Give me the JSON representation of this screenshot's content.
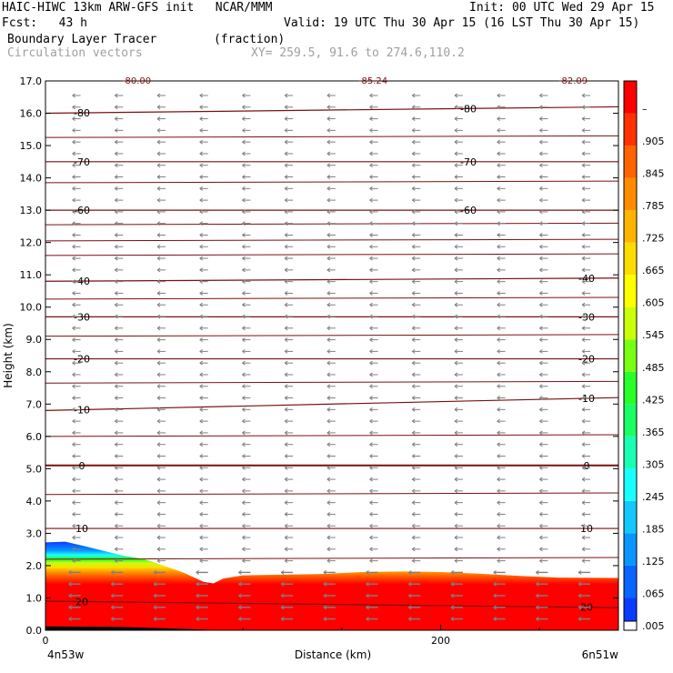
{
  "header": {
    "model_line": "HAIC-HIWC 13km ARW-GFS init   NCAR/MMM",
    "init_line": "Init: 00 UTC Wed 29 Apr 15",
    "fcst_line": "Fcst:   43 h",
    "valid_line": "Valid: 19 UTC Thu 30 Apr 15 (16 LST Thu 30 Apr 15)",
    "field_line": "Boundary Layer Tracer        (fraction)",
    "vectors_line": "Circulation vectors",
    "xy_line": "XY= 259.5, 91.6 to 274.6,110.2"
  },
  "chart_data": {
    "type": "heatmap",
    "title": "Boundary Layer Tracer (fraction)",
    "ylabel": "Height (km)",
    "xlabel": "Distance (km)",
    "x_left_label": "4n53w",
    "x_right_label": "6n51w",
    "xlim": [
      0,
      290
    ],
    "ylim": [
      0,
      17
    ],
    "y_ticks": [
      "0.0",
      "1.0",
      "2.0",
      "3.0",
      "4.0",
      "5.0",
      "6.0",
      "7.0",
      "8.0",
      "9.0",
      "10.0",
      "11.0",
      "12.0",
      "13.0",
      "14.0",
      "15.0",
      "16.0",
      "17.0"
    ],
    "x_ticks": [
      {
        "value": 0,
        "label": "0"
      },
      {
        "value": 200,
        "label": "200"
      }
    ],
    "colorbar_labels": [
      ".005",
      ".065",
      ".125",
      ".185",
      ".245",
      ".305",
      ".365",
      ".425",
      ".485",
      ".545",
      ".605",
      ".665",
      ".725",
      ".785",
      ".845",
      ".905",
      "–"
    ],
    "colorbar_colors": [
      "#0a3cff",
      "#0a64ff",
      "#0a96ff",
      "#14c8ff",
      "#19ffff",
      "#19ffb4",
      "#19ff64",
      "#28ff28",
      "#78ff14",
      "#c8ff0a",
      "#ffff00",
      "#ffdc00",
      "#ffb400",
      "#ff8c00",
      "#ff6400",
      "#ff3200",
      "#ff0000"
    ],
    "top_partial_labels": [
      "-80.00",
      "-85.24",
      "-82.09"
    ],
    "tracer_top_km": [
      [
        0,
        2.72
      ],
      [
        10,
        2.74
      ],
      [
        20,
        2.6
      ],
      [
        30,
        2.45
      ],
      [
        40,
        2.3
      ],
      [
        50,
        2.2
      ],
      [
        60,
        2.0
      ],
      [
        70,
        1.78
      ],
      [
        80,
        1.5
      ],
      [
        85,
        1.45
      ],
      [
        90,
        1.6
      ],
      [
        100,
        1.7
      ],
      [
        120,
        1.72
      ],
      [
        140,
        1.74
      ],
      [
        160,
        1.8
      ],
      [
        180,
        1.82
      ],
      [
        200,
        1.8
      ],
      [
        220,
        1.75
      ],
      [
        240,
        1.68
      ],
      [
        260,
        1.63
      ],
      [
        290,
        1.62
      ]
    ],
    "temperature_contours": [
      {
        "label": "-80",
        "y": [
          16.0,
          16.2
        ]
      },
      {
        "label": "-70",
        "y": [
          14.5,
          14.5
        ]
      },
      {
        "label": "-60",
        "y": [
          13.0,
          13.0
        ]
      },
      {
        "label": "-40",
        "y": [
          10.8,
          10.9
        ]
      },
      {
        "label": "-30",
        "y": [
          9.7,
          9.7
        ]
      },
      {
        "label": "-20",
        "y": [
          8.4,
          8.4
        ]
      },
      {
        "label": "-10",
        "y": [
          6.8,
          7.2
        ]
      },
      {
        "label": "0",
        "y": [
          5.1,
          5.1
        ]
      },
      {
        "label": "10",
        "y": [
          3.15,
          3.15
        ]
      },
      {
        "label": "20",
        "y": [
          0.9,
          0.7
        ]
      }
    ],
    "wind_arrow_direction": "westward"
  }
}
